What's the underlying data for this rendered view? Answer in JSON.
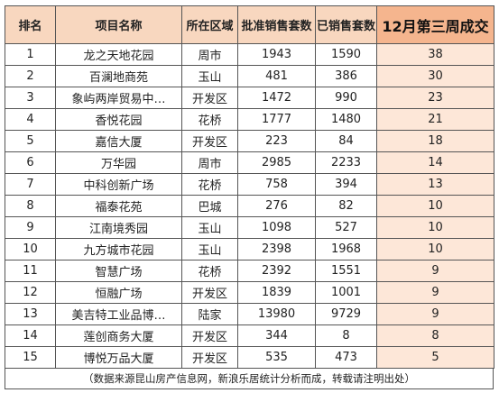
{
  "headers": [
    "排名",
    "项目名称",
    "所在区域",
    "批准销售套数",
    "已销售套数",
    "12月第三周成交"
  ],
  "rows": [
    [
      "1",
      "龙之天地花园",
      "周市",
      "1943",
      "1590",
      "38"
    ],
    [
      "2",
      "百澜地商苑",
      "玉山",
      "481",
      "386",
      "30"
    ],
    [
      "3",
      "象屿两岸贸易中…",
      "开发区",
      "1472",
      "990",
      "23"
    ],
    [
      "4",
      "香悦花园",
      "花桥",
      "1777",
      "1480",
      "21"
    ],
    [
      "5",
      "嘉信大厦",
      "开发区",
      "223",
      "84",
      "18"
    ],
    [
      "6",
      "万华园",
      "周市",
      "2985",
      "2233",
      "14"
    ],
    [
      "7",
      "中科创新广场",
      "花桥",
      "758",
      "394",
      "13"
    ],
    [
      "8",
      "福泰花苑",
      "巴城",
      "276",
      "82",
      "10"
    ],
    [
      "9",
      "江南境秀园",
      "玉山",
      "1098",
      "527",
      "10"
    ],
    [
      "10",
      "九方城市花园",
      "玉山",
      "2398",
      "1968",
      "10"
    ],
    [
      "11",
      "智慧广场",
      "花桥",
      "2392",
      "1551",
      "9"
    ],
    [
      "12",
      "恒融广场",
      "开发区",
      "1839",
      "1001",
      "9"
    ],
    [
      "13",
      "美吉特工业品博…",
      "陆家",
      "13980",
      "9729",
      "9"
    ],
    [
      "14",
      "莲创商务大厦",
      "开发区",
      "344",
      "8",
      "8"
    ],
    [
      "15",
      "博悦万品大厦",
      "开发区",
      "535",
      "473",
      "5"
    ]
  ],
  "note": "（数据来源昆山房产信息网，新浪乐居统计分析而成，转载请注明出处）"
}
